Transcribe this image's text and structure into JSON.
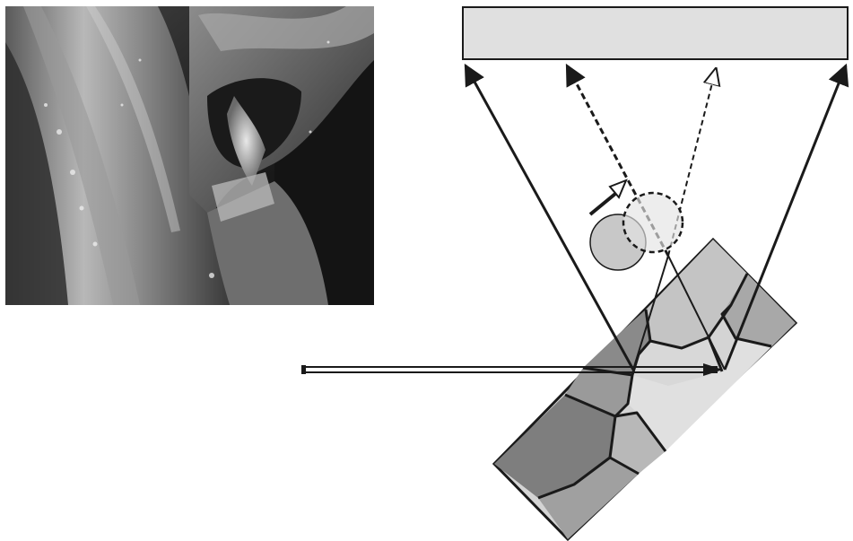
{
  "figure": {
    "photo": {
      "name": "micrograph-photo"
    },
    "diagram": {
      "name": "diffraction-schematic",
      "labels": []
    },
    "colors": {
      "background": "#ffffff",
      "detector_fill": "#e0e0e0",
      "stroke": "#1a1a1a",
      "grain_dark": "#8a8a8a",
      "grain_mid": "#a8a8a8",
      "grain_light": "#d4d4d4",
      "spot_fill": "#c8c8c8"
    }
  }
}
